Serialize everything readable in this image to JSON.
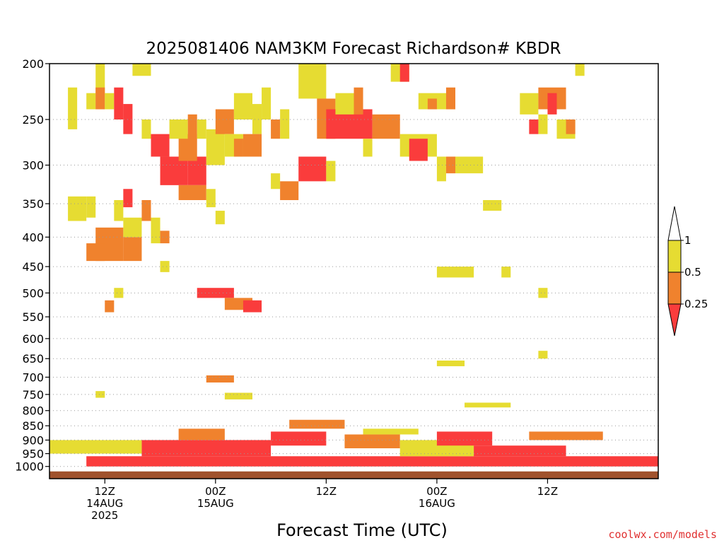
{
  "chart_data": {
    "type": "heatmap",
    "title": "2025081406 NAM3KM Forecast Richardson# KBDR",
    "xlabel": "Forecast Time (UTC)",
    "ylabel": "",
    "y_scale": "log-pressure",
    "y_reversed": true,
    "ylim": [
      1050,
      200
    ],
    "y_ticks": [
      200,
      250,
      300,
      350,
      400,
      450,
      500,
      550,
      600,
      650,
      700,
      750,
      800,
      850,
      900,
      950,
      1000
    ],
    "x_start": "2025-08-14 06Z",
    "x_end": "2025-08-16 24Z",
    "x_ticks": [
      {
        "time": "2025-08-14 12Z",
        "lines": [
          "12Z",
          "14AUG",
          "2025"
        ]
      },
      {
        "time": "2025-08-15 00Z",
        "lines": [
          "00Z",
          "15AUG"
        ]
      },
      {
        "time": "2025-08-15 12Z",
        "lines": [
          "12Z"
        ]
      },
      {
        "time": "2025-08-16 00Z",
        "lines": [
          "00Z",
          "16AUG"
        ]
      },
      {
        "time": "2025-08-16 12Z",
        "lines": [
          "12Z"
        ]
      }
    ],
    "grid": "dotted horizontal",
    "legend": {
      "placement": "right",
      "type": "colorbar",
      "labels": [
        "1",
        "0.5",
        "0.25"
      ],
      "bins": [
        {
          "range": "0.5-1",
          "color": "#e6dc32"
        },
        {
          "range": "0.25-0.5",
          "color": "#f0822d"
        },
        {
          "range": "<0.25",
          "color": "#fa3c3c"
        }
      ]
    },
    "colors": {
      "yellow": "#e6dc32",
      "orange": "#f0822d",
      "red": "#fa3c3c",
      "ground": "#a0522d"
    },
    "surface_pressure": 1020,
    "cells": [
      {
        "t1": "14AUG 08Z",
        "t2": "14AUG 10Z",
        "p1": 340,
        "p2": 375,
        "c": "Y"
      },
      {
        "t1": "14AUG 10Z",
        "t2": "14AUG 11Z",
        "p1": 340,
        "p2": 370,
        "c": "Y"
      },
      {
        "t1": "14AUG 08Z",
        "t2": "14AUG 09Z",
        "p1": 220,
        "p2": 260,
        "c": "Y"
      },
      {
        "t1": "14AUG 10Z",
        "t2": "14AUG 11Z",
        "p1": 225,
        "p2": 240,
        "c": "Y"
      },
      {
        "t1": "14AUG 11Z",
        "t2": "14AUG 12Z",
        "p1": 200,
        "p2": 240,
        "c": "Y"
      },
      {
        "t1": "14AUG 11Z",
        "t2": "14AUG 12Z",
        "p1": 220,
        "p2": 240,
        "c": "O"
      },
      {
        "t1": "14AUG 12Z",
        "t2": "14AUG 13Z",
        "p1": 225,
        "p2": 240,
        "c": "Y"
      },
      {
        "t1": "14AUG 13Z",
        "t2": "14AUG 14Z",
        "p1": 220,
        "p2": 250,
        "c": "R"
      },
      {
        "t1": "14AUG 14Z",
        "t2": "14AUG 15Z",
        "p1": 235,
        "p2": 265,
        "c": "R"
      },
      {
        "t1": "14AUG 15Z",
        "t2": "14AUG 17Z",
        "p1": 200,
        "p2": 210,
        "c": "Y"
      },
      {
        "t1": "14AUG 11Z",
        "t2": "14AUG 14Z",
        "p1": 385,
        "p2": 440,
        "c": "O"
      },
      {
        "t1": "14AUG 10Z",
        "t2": "14AUG 12Z",
        "p1": 410,
        "p2": 440,
        "c": "O"
      },
      {
        "t1": "14AUG 14Z",
        "t2": "14AUG 16Z",
        "p1": 400,
        "p2": 440,
        "c": "O"
      },
      {
        "t1": "14AUG 14Z",
        "t2": "14AUG 16Z",
        "p1": 370,
        "p2": 400,
        "c": "Y"
      },
      {
        "t1": "14AUG 13Z",
        "t2": "14AUG 14Z",
        "p1": 345,
        "p2": 375,
        "c": "Y"
      },
      {
        "t1": "14AUG 14Z",
        "t2": "14AUG 15Z",
        "p1": 330,
        "p2": 355,
        "c": "R"
      },
      {
        "t1": "14AUG 16Z",
        "t2": "14AUG 17Z",
        "p1": 345,
        "p2": 375,
        "c": "O"
      },
      {
        "t1": "14AUG 17Z",
        "t2": "14AUG 18Z",
        "p1": 370,
        "p2": 410,
        "c": "Y"
      },
      {
        "t1": "14AUG 18Z",
        "t2": "14AUG 19Z",
        "p1": 390,
        "p2": 410,
        "c": "O"
      },
      {
        "t1": "14AUG 13Z",
        "t2": "14AUG 14Z",
        "p1": 490,
        "p2": 510,
        "c": "Y"
      },
      {
        "t1": "14AUG 12Z",
        "t2": "14AUG 13Z",
        "p1": 515,
        "p2": 540,
        "c": "O"
      },
      {
        "t1": "14AUG 18Z",
        "t2": "14AUG 19Z",
        "p1": 440,
        "p2": 460,
        "c": "Y"
      },
      {
        "t1": "14AUG 16Z",
        "t2": "14AUG 17Z",
        "p1": 250,
        "p2": 270,
        "c": "Y"
      },
      {
        "t1": "14AUG 17Z",
        "t2": "14AUG 19Z",
        "p1": 265,
        "p2": 290,
        "c": "R"
      },
      {
        "t1": "14AUG 18Z",
        "t2": "14AUG 21Z",
        "p1": 290,
        "p2": 325,
        "c": "R"
      },
      {
        "t1": "14AUG 21Z",
        "t2": "14AUG 23Z",
        "p1": 290,
        "p2": 325,
        "c": "R"
      },
      {
        "t1": "14AUG 20Z",
        "t2": "14AUG 22Z",
        "p1": 265,
        "p2": 295,
        "c": "O"
      },
      {
        "t1": "14AUG 19Z",
        "t2": "14AUG 21Z",
        "p1": 250,
        "p2": 270,
        "c": "Y"
      },
      {
        "t1": "14AUG 21Z",
        "t2": "14AUG 22Z",
        "p1": 245,
        "p2": 270,
        "c": "O"
      },
      {
        "t1": "14AUG 22Z",
        "t2": "14AUG 23Z",
        "p1": 250,
        "p2": 270,
        "c": "Y"
      },
      {
        "t1": "14AUG 20Z",
        "t2": "14AUG 23Z",
        "p1": 325,
        "p2": 345,
        "c": "O"
      },
      {
        "t1": "14AUG 23Z",
        "t2": "15AUG 01Z",
        "p1": 260,
        "p2": 300,
        "c": "Y"
      },
      {
        "t1": "15AUG 00Z",
        "t2": "15AUG 02Z",
        "p1": 240,
        "p2": 265,
        "c": "O"
      },
      {
        "t1": "15AUG 02Z",
        "t2": "15AUG 04Z",
        "p1": 225,
        "p2": 250,
        "c": "Y"
      },
      {
        "t1": "15AUG 01Z",
        "t2": "15AUG 03Z",
        "p1": 265,
        "p2": 290,
        "c": "Y"
      },
      {
        "t1": "15AUG 02Z",
        "t2": "15AUG 03Z",
        "p1": 270,
        "p2": 290,
        "c": "O"
      },
      {
        "t1": "15AUG 00Z",
        "t2": "15AUG 01Z",
        "p1": 360,
        "p2": 380,
        "c": "Y"
      },
      {
        "t1": "14AUG 23Z",
        "t2": "15AUG 00Z",
        "p1": 330,
        "p2": 355,
        "c": "Y"
      },
      {
        "t1": "15AUG 04Z",
        "t2": "15AUG 05Z",
        "p1": 235,
        "p2": 265,
        "c": "Y"
      },
      {
        "t1": "15AUG 05Z",
        "t2": "15AUG 06Z",
        "p1": 220,
        "p2": 250,
        "c": "Y"
      },
      {
        "t1": "15AUG 06Z",
        "t2": "15AUG 07Z",
        "p1": 250,
        "p2": 270,
        "c": "O"
      },
      {
        "t1": "15AUG 07Z",
        "t2": "15AUG 08Z",
        "p1": 240,
        "p2": 270,
        "c": "Y"
      },
      {
        "t1": "15AUG 03Z",
        "t2": "15AUG 05Z",
        "p1": 265,
        "p2": 290,
        "c": "O"
      },
      {
        "t1": "15AUG 06Z",
        "t2": "15AUG 07Z",
        "p1": 310,
        "p2": 330,
        "c": "Y"
      },
      {
        "t1": "15AUG 07Z",
        "t2": "15AUG 09Z",
        "p1": 320,
        "p2": 345,
        "c": "O"
      },
      {
        "t1": "15AUG 09Z",
        "t2": "15AUG 12Z",
        "p1": 200,
        "p2": 230,
        "c": "Y"
      },
      {
        "t1": "15AUG 09Z",
        "t2": "15AUG 12Z",
        "p1": 290,
        "p2": 320,
        "c": "R"
      },
      {
        "t1": "15AUG 12Z",
        "t2": "15AUG 13Z",
        "p1": 295,
        "p2": 320,
        "c": "Y"
      },
      {
        "t1": "15AUG 11Z",
        "t2": "15AUG 13Z",
        "p1": 230,
        "p2": 270,
        "c": "O"
      },
      {
        "t1": "15AUG 12Z",
        "t2": "15AUG 17Z",
        "p1": 240,
        "p2": 270,
        "c": "R"
      },
      {
        "t1": "15AUG 13Z",
        "t2": "15AUG 15Z",
        "p1": 225,
        "p2": 245,
        "c": "Y"
      },
      {
        "t1": "15AUG 15Z",
        "t2": "15AUG 16Z",
        "p1": 220,
        "p2": 245,
        "c": "O"
      },
      {
        "t1": "15AUG 17Z",
        "t2": "15AUG 20Z",
        "p1": 245,
        "p2": 270,
        "c": "O"
      },
      {
        "t1": "15AUG 16Z",
        "t2": "15AUG 17Z",
        "p1": 270,
        "p2": 290,
        "c": "Y"
      },
      {
        "t1": "15AUG 19Z",
        "t2": "15AUG 21Z",
        "p1": 200,
        "p2": 215,
        "c": "Y"
      },
      {
        "t1": "15AUG 20Z",
        "t2": "15AUG 21Z",
        "p1": 200,
        "p2": 215,
        "c": "R"
      },
      {
        "t1": "15AUG 22Z",
        "t2": "16AUG 02Z",
        "p1": 225,
        "p2": 240,
        "c": "Y"
      },
      {
        "t1": "15AUG 23Z",
        "t2": "16AUG 00Z",
        "p1": 230,
        "p2": 240,
        "c": "O"
      },
      {
        "t1": "16AUG 01Z",
        "t2": "16AUG 02Z",
        "p1": 220,
        "p2": 240,
        "c": "O"
      },
      {
        "t1": "15AUG 20Z",
        "t2": "15AUG 24Z",
        "p1": 265,
        "p2": 290,
        "c": "Y"
      },
      {
        "t1": "15AUG 21Z",
        "t2": "15AUG 23Z",
        "p1": 270,
        "p2": 295,
        "c": "R"
      },
      {
        "t1": "15AUG 24Z",
        "t2": "16AUG 01Z",
        "p1": 290,
        "p2": 320,
        "c": "Y"
      },
      {
        "t1": "16AUG 01Z",
        "t2": "16AUG 02Z",
        "p1": 290,
        "p2": 310,
        "c": "O"
      },
      {
        "t1": "16AUG 02Z",
        "t2": "16AUG 05Z",
        "p1": 290,
        "p2": 310,
        "c": "Y"
      },
      {
        "t1": "16AUG 05Z",
        "t2": "16AUG 07Z",
        "p1": 345,
        "p2": 360,
        "c": "Y"
      },
      {
        "t1": "16AUG 00Z",
        "t2": "16AUG 04Z",
        "p1": 450,
        "p2": 470,
        "c": "Y"
      },
      {
        "t1": "16AUG 07Z",
        "t2": "16AUG 08Z",
        "p1": 450,
        "p2": 470,
        "c": "Y"
      },
      {
        "t1": "16AUG 11Z",
        "t2": "16AUG 12Z",
        "p1": 490,
        "p2": 510,
        "c": "Y"
      },
      {
        "t1": "16AUG 11Z",
        "t2": "16AUG 12Z",
        "p1": 630,
        "p2": 650,
        "c": "Y"
      },
      {
        "t1": "16AUG 00Z",
        "t2": "16AUG 03Z",
        "p1": 655,
        "p2": 670,
        "c": "Y"
      },
      {
        "t1": "16AUG 03Z",
        "t2": "16AUG 08Z",
        "p1": 775,
        "p2": 790,
        "c": "Y"
      },
      {
        "t1": "16AUG 09Z",
        "t2": "16AUG 11Z",
        "p1": 225,
        "p2": 245,
        "c": "Y"
      },
      {
        "t1": "16AUG 11Z",
        "t2": "16AUG 14Z",
        "p1": 220,
        "p2": 240,
        "c": "O"
      },
      {
        "t1": "16AUG 12Z",
        "t2": "16AUG 13Z",
        "p1": 225,
        "p2": 245,
        "c": "R"
      },
      {
        "t1": "16AUG 11Z",
        "t2": "16AUG 12Z",
        "p1": 245,
        "p2": 265,
        "c": "Y"
      },
      {
        "t1": "16AUG 10Z",
        "t2": "16AUG 11Z",
        "p1": 250,
        "p2": 265,
        "c": "R"
      },
      {
        "t1": "16AUG 13Z",
        "t2": "16AUG 15Z",
        "p1": 250,
        "p2": 270,
        "c": "Y"
      },
      {
        "t1": "16AUG 14Z",
        "t2": "16AUG 15Z",
        "p1": 250,
        "p2": 265,
        "c": "O"
      },
      {
        "t1": "16AUG 15Z",
        "t2": "16AUG 16Z",
        "p1": 200,
        "p2": 210,
        "c": "Y"
      },
      {
        "t1": "14AUG 22Z",
        "t2": "15AUG 02Z",
        "p1": 490,
        "p2": 510,
        "c": "R"
      },
      {
        "t1": "15AUG 01Z",
        "t2": "15AUG 04Z",
        "p1": 510,
        "p2": 535,
        "c": "O"
      },
      {
        "t1": "15AUG 03Z",
        "t2": "15AUG 05Z",
        "p1": 515,
        "p2": 540,
        "c": "R"
      },
      {
        "t1": "14AUG 23Z",
        "t2": "15AUG 02Z",
        "p1": 695,
        "p2": 715,
        "c": "O"
      },
      {
        "t1": "15AUG 01Z",
        "t2": "15AUG 04Z",
        "p1": 745,
        "p2": 765,
        "c": "Y"
      },
      {
        "t1": "14AUG 11Z",
        "t2": "14AUG 12Z",
        "p1": 740,
        "p2": 760,
        "c": "Y"
      },
      {
        "t1": "14AUG 10Z",
        "t2": "16AUG 24Z",
        "p1": 960,
        "p2": 1000,
        "c": "R"
      },
      {
        "t1": "14AUG 16Z",
        "t2": "15AUG 06Z",
        "p1": 900,
        "p2": 960,
        "c": "R"
      },
      {
        "t1": "14AUG 20Z",
        "t2": "15AUG 01Z",
        "p1": 860,
        "p2": 900,
        "c": "O"
      },
      {
        "t1": "15AUG 06Z",
        "t2": "15AUG 12Z",
        "p1": 870,
        "p2": 920,
        "c": "R"
      },
      {
        "t1": "15AUG 08Z",
        "t2": "15AUG 14Z",
        "p1": 830,
        "p2": 860,
        "c": "O"
      },
      {
        "t1": "15AUG 14Z",
        "t2": "15AUG 20Z",
        "p1": 880,
        "p2": 930,
        "c": "O"
      },
      {
        "t1": "15AUG 20Z",
        "t2": "16AUG 04Z",
        "p1": 900,
        "p2": 960,
        "c": "Y"
      },
      {
        "t1": "16AUG 00Z",
        "t2": "16AUG 06Z",
        "p1": 870,
        "p2": 920,
        "c": "R"
      },
      {
        "t1": "16AUG 04Z",
        "t2": "16AUG 14Z",
        "p1": 920,
        "p2": 960,
        "c": "R"
      },
      {
        "t1": "16AUG 10Z",
        "t2": "16AUG 18Z",
        "p1": 870,
        "p2": 900,
        "c": "O"
      },
      {
        "t1": "14AUG 06Z",
        "t2": "14AUG 16Z",
        "p1": 900,
        "p2": 950,
        "c": "Y"
      },
      {
        "t1": "15AUG 16Z",
        "t2": "15AUG 22Z",
        "p1": 860,
        "p2": 880,
        "c": "Y"
      }
    ]
  },
  "credit": "coolwx.com/models"
}
